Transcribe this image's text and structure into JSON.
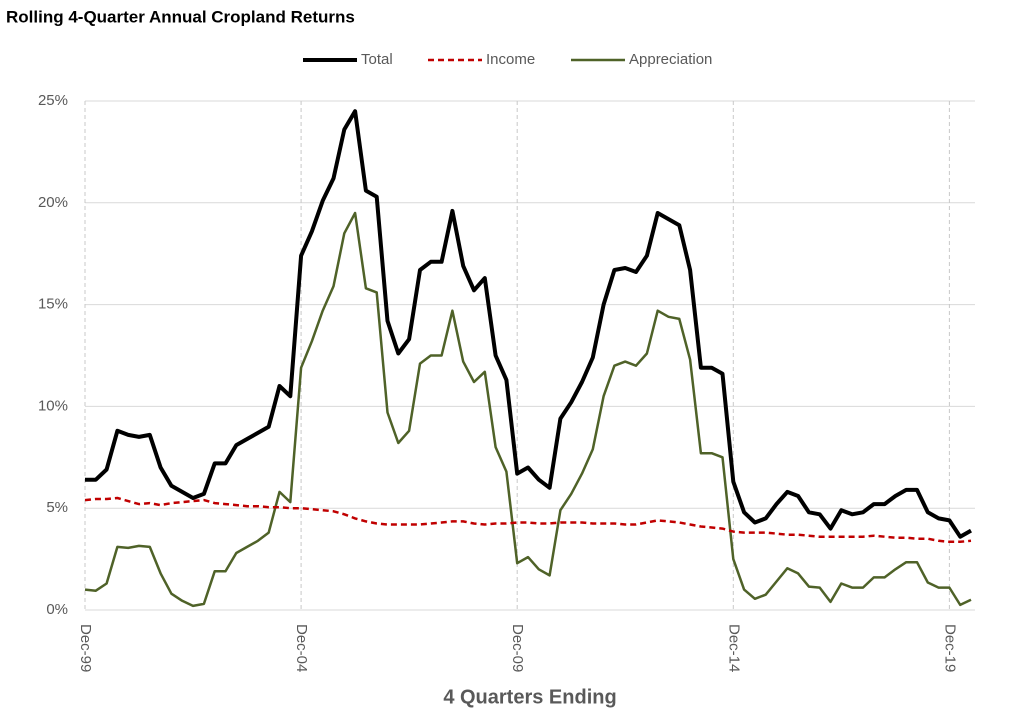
{
  "chart_data": {
    "type": "line",
    "title": "Rolling 4-Quarter Annual Cropland Returns",
    "x_label": "4 Quarters Ending",
    "categories": [
      "Dec-99",
      null,
      null,
      null,
      null,
      null,
      null,
      null,
      null,
      null,
      null,
      null,
      null,
      null,
      null,
      null,
      null,
      null,
      null,
      null,
      "Dec-04",
      null,
      null,
      null,
      null,
      null,
      null,
      null,
      null,
      null,
      null,
      null,
      null,
      null,
      null,
      null,
      null,
      null,
      null,
      null,
      "Dec-09",
      null,
      null,
      null,
      null,
      null,
      null,
      null,
      null,
      null,
      null,
      null,
      null,
      null,
      null,
      null,
      null,
      null,
      null,
      null,
      "Dec-14",
      null,
      null,
      null,
      null,
      null,
      null,
      null,
      null,
      null,
      null,
      null,
      null,
      null,
      null,
      null,
      null,
      null,
      null,
      null,
      "Dec-19",
      null,
      null
    ],
    "series": [
      {
        "name": "Total",
        "color": "#000000",
        "linestyle": "solid",
        "values": [
          6.4,
          6.4,
          6.9,
          8.8,
          8.6,
          8.5,
          8.6,
          7.0,
          6.1,
          5.8,
          5.5,
          5.7,
          7.2,
          7.2,
          8.1,
          8.4,
          8.7,
          9.0,
          11.0,
          10.5,
          17.4,
          18.6,
          20.1,
          21.2,
          23.6,
          24.5,
          20.6,
          20.3,
          14.2,
          12.6,
          13.3,
          16.7,
          17.1,
          17.1,
          19.6,
          16.9,
          15.7,
          16.3,
          12.5,
          11.3,
          6.7,
          7.0,
          6.4,
          6.0,
          9.4,
          10.2,
          11.2,
          12.4,
          15.0,
          16.7,
          16.8,
          16.6,
          17.4,
          19.5,
          19.2,
          18.9,
          16.7,
          11.9,
          11.9,
          11.6,
          6.3,
          4.8,
          4.3,
          4.5,
          5.2,
          5.8,
          5.6,
          4.8,
          4.7,
          4.0,
          4.9,
          4.7,
          4.8,
          5.2,
          5.2,
          5.6,
          5.9,
          5.9,
          4.8,
          4.5,
          4.4,
          3.6,
          3.9
        ]
      },
      {
        "name": "Income",
        "color": "#c00000",
        "linestyle": "dashed",
        "values": [
          5.4,
          5.45,
          5.45,
          5.5,
          5.35,
          5.2,
          5.25,
          5.15,
          5.25,
          5.3,
          5.35,
          5.4,
          5.25,
          5.2,
          5.15,
          5.1,
          5.1,
          5.05,
          5.05,
          5.0,
          5.0,
          4.95,
          4.9,
          4.85,
          4.7,
          4.5,
          4.35,
          4.25,
          4.2,
          4.2,
          4.2,
          4.2,
          4.25,
          4.3,
          4.35,
          4.35,
          4.25,
          4.2,
          4.25,
          4.25,
          4.3,
          4.3,
          4.25,
          4.25,
          4.3,
          4.3,
          4.3,
          4.25,
          4.25,
          4.25,
          4.2,
          4.2,
          4.3,
          4.4,
          4.35,
          4.3,
          4.2,
          4.1,
          4.05,
          4.0,
          3.85,
          3.8,
          3.8,
          3.8,
          3.75,
          3.7,
          3.7,
          3.65,
          3.6,
          3.6,
          3.6,
          3.6,
          3.6,
          3.65,
          3.6,
          3.55,
          3.55,
          3.5,
          3.5,
          3.4,
          3.35,
          3.35,
          3.4
        ]
      },
      {
        "name": "Appreciation",
        "color": "#4f6228",
        "linestyle": "solid",
        "values": [
          1.0,
          0.95,
          1.3,
          3.1,
          3.05,
          3.15,
          3.1,
          1.8,
          0.8,
          0.45,
          0.2,
          0.3,
          1.9,
          1.9,
          2.8,
          3.1,
          3.4,
          3.8,
          5.8,
          5.3,
          11.9,
          13.2,
          14.7,
          15.9,
          18.5,
          19.5,
          15.8,
          15.6,
          9.7,
          8.2,
          8.8,
          12.1,
          12.5,
          12.5,
          14.7,
          12.2,
          11.2,
          11.7,
          8.0,
          6.8,
          2.3,
          2.6,
          2.0,
          1.7,
          4.9,
          5.7,
          6.7,
          7.9,
          10.5,
          12.0,
          12.2,
          12.0,
          12.6,
          14.7,
          14.4,
          14.3,
          12.3,
          7.7,
          7.7,
          7.5,
          2.5,
          1.0,
          0.55,
          0.75,
          1.4,
          2.05,
          1.8,
          1.15,
          1.1,
          0.4,
          1.3,
          1.1,
          1.1,
          1.6,
          1.6,
          2.0,
          2.35,
          2.35,
          1.35,
          1.1,
          1.1,
          0.25,
          0.5
        ]
      }
    ],
    "ylim": [
      0,
      25
    ],
    "yticks": [
      {
        "value": 0,
        "label": "0%"
      },
      {
        "value": 5,
        "label": "5%"
      },
      {
        "value": 10,
        "label": "10%"
      },
      {
        "value": 15,
        "label": "15%"
      },
      {
        "value": 20,
        "label": "20%"
      },
      {
        "value": 25,
        "label": "25%"
      }
    ],
    "grid": true,
    "legend": "top"
  }
}
